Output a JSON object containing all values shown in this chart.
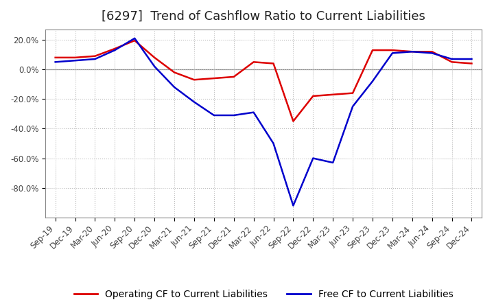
{
  "title": "[6297]  Trend of Cashflow Ratio to Current Liabilities",
  "x_labels": [
    "Sep-19",
    "Dec-19",
    "Mar-20",
    "Jun-20",
    "Sep-20",
    "Dec-20",
    "Mar-21",
    "Jun-21",
    "Sep-21",
    "Dec-21",
    "Mar-22",
    "Jun-22",
    "Sep-22",
    "Dec-22",
    "Mar-23",
    "Jun-23",
    "Sep-23",
    "Dec-23",
    "Mar-24",
    "Jun-24",
    "Sep-24",
    "Dec-24"
  ],
  "operating_cf": [
    8.0,
    8.0,
    9.0,
    14.0,
    19.5,
    8.0,
    -2.0,
    -7.0,
    -6.0,
    -5.0,
    5.0,
    4.0,
    -35.0,
    -18.0,
    -17.0,
    -16.0,
    13.0,
    13.0,
    12.0,
    12.0,
    5.0,
    4.0
  ],
  "free_cf": [
    5.0,
    6.0,
    7.0,
    13.0,
    21.0,
    2.0,
    -12.0,
    -22.0,
    -31.0,
    -31.0,
    -29.0,
    -50.0,
    -92.0,
    -60.0,
    -63.0,
    -25.0,
    -8.0,
    11.0,
    12.0,
    11.0,
    7.0,
    7.0
  ],
  "operating_color": "#dd0000",
  "free_color": "#0000cc",
  "ylim": [
    -100,
    27
  ],
  "yticks": [
    20.0,
    0.0,
    -20.0,
    -40.0,
    -60.0,
    -80.0
  ],
  "ytick_labels": [
    "20.0%",
    "0.0%",
    "-20.0%",
    "-40.0%",
    "-60.0%",
    "-80.0%"
  ],
  "background_color": "#ffffff",
  "plot_bg_color": "#ffffff",
  "grid_color": "#bbbbbb",
  "legend_op": "Operating CF to Current Liabilities",
  "legend_free": "Free CF to Current Liabilities",
  "title_fontsize": 13,
  "legend_fontsize": 10,
  "tick_fontsize": 8.5,
  "line_width": 1.8
}
